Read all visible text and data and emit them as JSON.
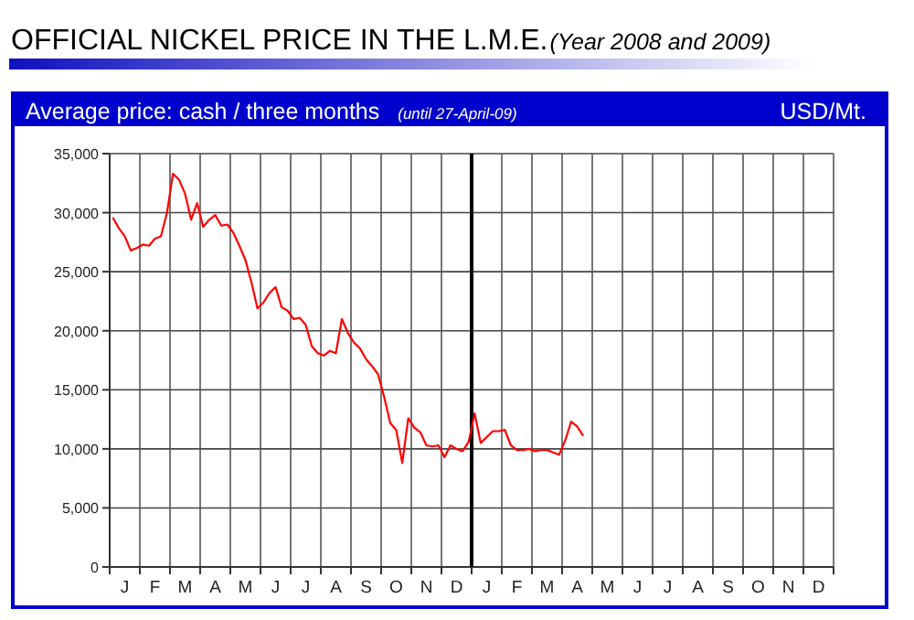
{
  "chart_data": {
    "type": "line",
    "title": "OFFICIAL NICKEL PRICE IN THE L.M.E.",
    "subtitle": "(Year 2008 and 2009)",
    "annotations": [
      "Average price: cash / three months",
      "(until 27-April-09)",
      "USD/Mt."
    ],
    "categories": [
      null,
      null,
      "J",
      null,
      null,
      null,
      null,
      "F",
      null,
      null,
      null,
      null,
      "M",
      null,
      null,
      null,
      null,
      "A",
      null,
      null,
      null,
      null,
      "M",
      null,
      null,
      null,
      null,
      "J",
      null,
      null,
      null,
      null,
      "J",
      null,
      null,
      null,
      null,
      "A",
      null,
      null,
      null,
      null,
      "S",
      null,
      null,
      null,
      null,
      "O",
      null,
      null,
      null,
      null,
      "N",
      null,
      null,
      null,
      null,
      "D",
      null,
      null,
      null,
      null,
      "J",
      null,
      null,
      null,
      null,
      "F",
      null,
      null,
      null,
      null,
      "M",
      null,
      null,
      null,
      null,
      "A",
      null,
      null,
      null,
      null,
      "M",
      null,
      null,
      null,
      null,
      "J",
      null,
      null,
      null,
      null,
      "J",
      null,
      null,
      null,
      null,
      "A",
      null,
      null,
      null,
      null,
      "S",
      null,
      null,
      null,
      null,
      "O",
      null,
      null,
      null,
      null,
      "N",
      null,
      null,
      null,
      null,
      "D",
      null,
      null
    ],
    "series": [
      {
        "color": "#ff0000",
        "values": [
          29600,
          28700,
          28000,
          26800,
          27000,
          27300,
          27200,
          27800,
          28000,
          30000,
          33300,
          32800,
          31600,
          29400,
          30800,
          28800,
          29400,
          29800,
          28900,
          29000,
          28300,
          27200,
          26000,
          24100,
          21900,
          22400,
          23200,
          23700,
          22000,
          21700,
          21000,
          21100,
          20500,
          18700,
          18100,
          17900,
          18300,
          18100,
          21000,
          19800,
          19000,
          18500,
          17600,
          17000,
          16300,
          14400,
          12200,
          11600,
          8800,
          12600,
          11800,
          11400,
          10300,
          10200,
          10300,
          9300,
          10300,
          10000,
          9800,
          10600,
          13000,
          10500,
          11000,
          11500,
          11500,
          11600,
          10300,
          9900,
          9900,
          10000,
          9800,
          9900,
          9900,
          9700,
          9500,
          10700,
          12300,
          11900,
          11100,
          null,
          null,
          null,
          null,
          null,
          null,
          null,
          null,
          null,
          null,
          null,
          null,
          null,
          null,
          null,
          null,
          null,
          null,
          null,
          null,
          null,
          null,
          null,
          null,
          null,
          null,
          null,
          null,
          null,
          null,
          null,
          null,
          null,
          null,
          null,
          null,
          null,
          null,
          null,
          null,
          null
        ]
      }
    ],
    "ylim": [
      0,
      35000
    ],
    "yticks": [
      {
        "value": 0,
        "label": "0"
      },
      {
        "value": 5000,
        "label": "5,000"
      },
      {
        "value": 10000,
        "label": "10,000"
      },
      {
        "value": 15000,
        "label": "15,000"
      },
      {
        "value": 20000,
        "label": "20,000"
      },
      {
        "value": 25000,
        "label": "25,000"
      },
      {
        "value": 30000,
        "label": "30,000"
      },
      {
        "value": 35000,
        "label": "35,000"
      }
    ],
    "grid": true,
    "marker": "none",
    "line_style": "solid"
  }
}
